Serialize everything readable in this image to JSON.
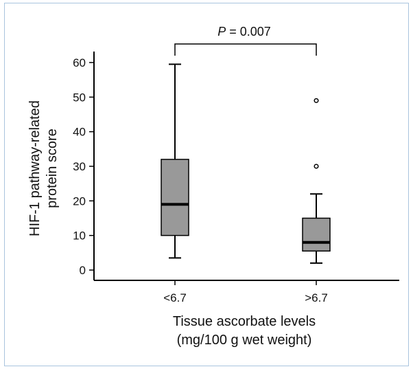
{
  "chart_data": {
    "type": "boxplot",
    "ylabel_lines": [
      "HIF-1 pathway-related",
      "protein score"
    ],
    "xlabel_lines": [
      "Tissue ascorbate levels",
      "(mg/100 g wet weight)"
    ],
    "ylim": [
      0,
      60
    ],
    "yticks": [
      0,
      10,
      20,
      30,
      40,
      50,
      60
    ],
    "categories": [
      "<6.7",
      ">6.7"
    ],
    "boxes": [
      {
        "label": "<6.7",
        "whisker_low": 3.5,
        "q1": 10,
        "median": 19,
        "q3": 32,
        "whisker_high": 59.5,
        "outliers": []
      },
      {
        "label": ">6.7",
        "whisker_low": 2,
        "q1": 5.5,
        "median": 8,
        "q3": 15,
        "whisker_high": 22,
        "outliers": [
          30,
          49
        ]
      }
    ],
    "significance": {
      "label_italic": "P",
      "label_rest": " = 0.007",
      "between": [
        "<6.7",
        ">6.7"
      ]
    },
    "colors": {
      "box_fill": "#999999",
      "stroke": "#000000",
      "frame": "#a9c4de"
    }
  }
}
